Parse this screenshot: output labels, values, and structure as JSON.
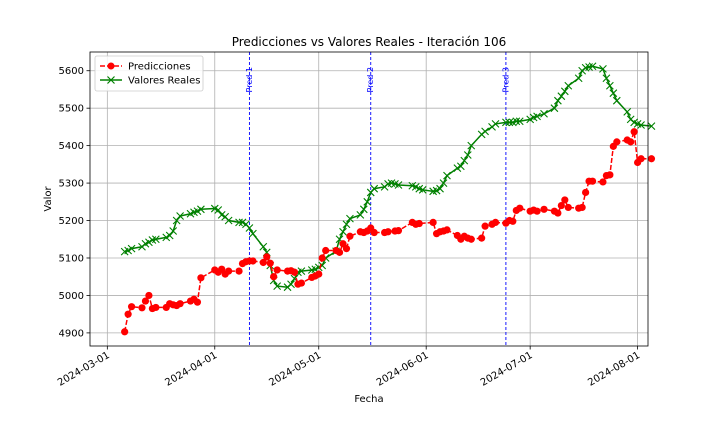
{
  "chart_data": {
    "type": "line",
    "title": "Predicciones vs Valores Reales - Iteración 106",
    "xlabel": "Fecha",
    "ylabel": "Valor",
    "xlim": [
      "2024-02-25",
      "2024-08-04"
    ],
    "ylim": [
      4865,
      5650
    ],
    "x_ticks": [
      "2024-03-01",
      "2024-04-01",
      "2024-05-01",
      "2024-06-01",
      "2024-07-01",
      "2024-08-01"
    ],
    "y_ticks": [
      4900,
      5000,
      5100,
      5200,
      5300,
      5400,
      5500,
      5600
    ],
    "grid": true,
    "legend": "top-left",
    "series": [
      {
        "name": "Predicciones",
        "color": "#ff0000",
        "marker": "circle",
        "linestyle": "dashed",
        "points": [
          [
            "2024-03-06",
            4903
          ],
          [
            "2024-03-07",
            4950
          ],
          [
            "2024-03-08",
            4970
          ],
          [
            "2024-03-11",
            4967
          ],
          [
            "2024-03-12",
            4985
          ],
          [
            "2024-03-13",
            5000
          ],
          [
            "2024-03-14",
            4965
          ],
          [
            "2024-03-15",
            4968
          ],
          [
            "2024-03-18",
            4968
          ],
          [
            "2024-03-19",
            4978
          ],
          [
            "2024-03-20",
            4975
          ],
          [
            "2024-03-21",
            4973
          ],
          [
            "2024-03-22",
            4978
          ],
          [
            "2024-03-25",
            4985
          ],
          [
            "2024-03-26",
            4990
          ],
          [
            "2024-03-27",
            4982
          ],
          [
            "2024-03-28",
            5047
          ],
          [
            "2024-04-01",
            5068
          ],
          [
            "2024-04-02",
            5062
          ],
          [
            "2024-04-03",
            5070
          ],
          [
            "2024-04-04",
            5057
          ],
          [
            "2024-04-05",
            5065
          ],
          [
            "2024-04-08",
            5065
          ],
          [
            "2024-04-09",
            5085
          ],
          [
            "2024-04-10",
            5090
          ],
          [
            "2024-04-11",
            5092
          ],
          [
            "2024-04-12",
            5092
          ],
          [
            "2024-04-15",
            5088
          ],
          [
            "2024-04-16",
            5103
          ],
          [
            "2024-04-17",
            5086
          ],
          [
            "2024-04-18",
            5050
          ],
          [
            "2024-04-19",
            5068
          ],
          [
            "2024-04-22",
            5065
          ],
          [
            "2024-04-23",
            5066
          ],
          [
            "2024-04-24",
            5062
          ],
          [
            "2024-04-25",
            5030
          ],
          [
            "2024-04-26",
            5033
          ],
          [
            "2024-04-29",
            5048
          ],
          [
            "2024-04-30",
            5052
          ],
          [
            "2024-05-01",
            5057
          ],
          [
            "2024-05-02",
            5100
          ],
          [
            "2024-05-03",
            5120
          ],
          [
            "2024-05-06",
            5120
          ],
          [
            "2024-05-07",
            5115
          ],
          [
            "2024-05-08",
            5138
          ],
          [
            "2024-05-09",
            5125
          ],
          [
            "2024-05-10",
            5158
          ],
          [
            "2024-05-13",
            5170
          ],
          [
            "2024-05-14",
            5168
          ],
          [
            "2024-05-15",
            5172
          ],
          [
            "2024-05-16",
            5180
          ],
          [
            "2024-05-17",
            5168
          ],
          [
            "2024-05-20",
            5168
          ],
          [
            "2024-05-21",
            5170
          ],
          [
            "2024-05-23",
            5172
          ],
          [
            "2024-05-24",
            5173
          ],
          [
            "2024-05-28",
            5195
          ],
          [
            "2024-05-29",
            5190
          ],
          [
            "2024-05-30",
            5192
          ],
          [
            "2024-06-03",
            5195
          ],
          [
            "2024-06-04",
            5165
          ],
          [
            "2024-06-05",
            5170
          ],
          [
            "2024-06-06",
            5172
          ],
          [
            "2024-06-07",
            5175
          ],
          [
            "2024-06-10",
            5160
          ],
          [
            "2024-06-11",
            5150
          ],
          [
            "2024-06-12",
            5158
          ],
          [
            "2024-06-13",
            5153
          ],
          [
            "2024-06-14",
            5150
          ],
          [
            "2024-06-17",
            5153
          ],
          [
            "2024-06-18",
            5185
          ],
          [
            "2024-06-20",
            5190
          ],
          [
            "2024-06-21",
            5195
          ],
          [
            "2024-06-24",
            5193
          ],
          [
            "2024-06-25",
            5200
          ],
          [
            "2024-06-26",
            5198
          ],
          [
            "2024-06-27",
            5227
          ],
          [
            "2024-06-28",
            5233
          ],
          [
            "2024-07-01",
            5225
          ],
          [
            "2024-07-02",
            5228
          ],
          [
            "2024-07-03",
            5225
          ],
          [
            "2024-07-05",
            5230
          ],
          [
            "2024-07-08",
            5225
          ],
          [
            "2024-07-09",
            5220
          ],
          [
            "2024-07-10",
            5240
          ],
          [
            "2024-07-11",
            5255
          ],
          [
            "2024-07-12",
            5235
          ],
          [
            "2024-07-15",
            5233
          ],
          [
            "2024-07-16",
            5235
          ],
          [
            "2024-07-17",
            5275
          ],
          [
            "2024-07-18",
            5305
          ],
          [
            "2024-07-19",
            5305
          ],
          [
            "2024-07-22",
            5303
          ],
          [
            "2024-07-23",
            5320
          ],
          [
            "2024-07-24",
            5322
          ],
          [
            "2024-07-25",
            5398
          ],
          [
            "2024-07-26",
            5410
          ],
          [
            "2024-07-29",
            5415
          ],
          [
            "2024-07-30",
            5410
          ],
          [
            "2024-07-31",
            5437
          ],
          [
            "2024-08-01",
            5355
          ],
          [
            "2024-08-02",
            5365
          ],
          [
            "2024-08-05",
            5365
          ]
        ]
      },
      {
        "name": "Valores Reales",
        "color": "#008000",
        "marker": "x",
        "linestyle": "solid",
        "points": [
          [
            "2024-03-06",
            5117
          ],
          [
            "2024-03-07",
            5120
          ],
          [
            "2024-03-08",
            5125
          ],
          [
            "2024-03-11",
            5130
          ],
          [
            "2024-03-12",
            5138
          ],
          [
            "2024-03-13",
            5142
          ],
          [
            "2024-03-14",
            5148
          ],
          [
            "2024-03-15",
            5150
          ],
          [
            "2024-03-18",
            5155
          ],
          [
            "2024-03-19",
            5160
          ],
          [
            "2024-03-20",
            5172
          ],
          [
            "2024-03-21",
            5200
          ],
          [
            "2024-03-22",
            5212
          ],
          [
            "2024-03-25",
            5218
          ],
          [
            "2024-03-26",
            5222
          ],
          [
            "2024-03-27",
            5225
          ],
          [
            "2024-03-28",
            5230
          ],
          [
            "2024-04-01",
            5232
          ],
          [
            "2024-04-02",
            5228
          ],
          [
            "2024-04-03",
            5215
          ],
          [
            "2024-04-04",
            5210
          ],
          [
            "2024-04-05",
            5200
          ],
          [
            "2024-04-08",
            5195
          ],
          [
            "2024-04-09",
            5195
          ],
          [
            "2024-04-10",
            5190
          ],
          [
            "2024-04-11",
            5180
          ],
          [
            "2024-04-12",
            5165
          ],
          [
            "2024-04-15",
            5130
          ],
          [
            "2024-04-16",
            5115
          ],
          [
            "2024-04-17",
            5080
          ],
          [
            "2024-04-18",
            5040
          ],
          [
            "2024-04-19",
            5025
          ],
          [
            "2024-04-22",
            5022
          ],
          [
            "2024-04-23",
            5030
          ],
          [
            "2024-04-24",
            5045
          ],
          [
            "2024-04-25",
            5062
          ],
          [
            "2024-04-26",
            5065
          ],
          [
            "2024-04-29",
            5068
          ],
          [
            "2024-04-30",
            5070
          ],
          [
            "2024-05-01",
            5075
          ],
          [
            "2024-05-02",
            5080
          ],
          [
            "2024-05-03",
            5100
          ],
          [
            "2024-05-06",
            5118
          ],
          [
            "2024-05-07",
            5150
          ],
          [
            "2024-05-08",
            5170
          ],
          [
            "2024-05-09",
            5190
          ],
          [
            "2024-05-10",
            5205
          ],
          [
            "2024-05-13",
            5215
          ],
          [
            "2024-05-14",
            5230
          ],
          [
            "2024-05-15",
            5250
          ],
          [
            "2024-05-16",
            5275
          ],
          [
            "2024-05-17",
            5285
          ],
          [
            "2024-05-20",
            5290
          ],
          [
            "2024-05-21",
            5298
          ],
          [
            "2024-05-22",
            5300
          ],
          [
            "2024-05-23",
            5298
          ],
          [
            "2024-05-24",
            5295
          ],
          [
            "2024-05-28",
            5293
          ],
          [
            "2024-05-29",
            5290
          ],
          [
            "2024-05-30",
            5285
          ],
          [
            "2024-05-31",
            5282
          ],
          [
            "2024-06-03",
            5278
          ],
          [
            "2024-06-04",
            5280
          ],
          [
            "2024-06-05",
            5285
          ],
          [
            "2024-06-06",
            5300
          ],
          [
            "2024-06-07",
            5320
          ],
          [
            "2024-06-10",
            5340
          ],
          [
            "2024-06-11",
            5345
          ],
          [
            "2024-06-12",
            5360
          ],
          [
            "2024-06-13",
            5375
          ],
          [
            "2024-06-14",
            5400
          ],
          [
            "2024-06-17",
            5430
          ],
          [
            "2024-06-18",
            5438
          ],
          [
            "2024-06-20",
            5450
          ],
          [
            "2024-06-21",
            5458
          ],
          [
            "2024-06-24",
            5462
          ],
          [
            "2024-06-25",
            5462
          ],
          [
            "2024-06-26",
            5462
          ],
          [
            "2024-06-27",
            5465
          ],
          [
            "2024-06-28",
            5465
          ],
          [
            "2024-07-01",
            5470
          ],
          [
            "2024-07-02",
            5475
          ],
          [
            "2024-07-03",
            5478
          ],
          [
            "2024-07-05",
            5485
          ],
          [
            "2024-07-08",
            5500
          ],
          [
            "2024-07-09",
            5520
          ],
          [
            "2024-07-10",
            5532
          ],
          [
            "2024-07-11",
            5545
          ],
          [
            "2024-07-12",
            5560
          ],
          [
            "2024-07-15",
            5580
          ],
          [
            "2024-07-16",
            5600
          ],
          [
            "2024-07-17",
            5608
          ],
          [
            "2024-07-18",
            5610
          ],
          [
            "2024-07-19",
            5612
          ],
          [
            "2024-07-22",
            5605
          ],
          [
            "2024-07-23",
            5580
          ],
          [
            "2024-07-24",
            5560
          ],
          [
            "2024-07-25",
            5540
          ],
          [
            "2024-07-26",
            5520
          ],
          [
            "2024-07-29",
            5490
          ],
          [
            "2024-07-30",
            5470
          ],
          [
            "2024-07-31",
            5462
          ],
          [
            "2024-08-01",
            5458
          ],
          [
            "2024-08-02",
            5455
          ],
          [
            "2024-08-05",
            5452
          ]
        ]
      }
    ],
    "vertical_lines": [
      {
        "label": "Pred 1",
        "date": "2024-04-11",
        "color": "#0000ff"
      },
      {
        "label": "Pred 2",
        "date": "2024-05-16",
        "color": "#0000ff"
      },
      {
        "label": "Pred 3",
        "date": "2024-06-24",
        "color": "#0000ff"
      }
    ]
  }
}
